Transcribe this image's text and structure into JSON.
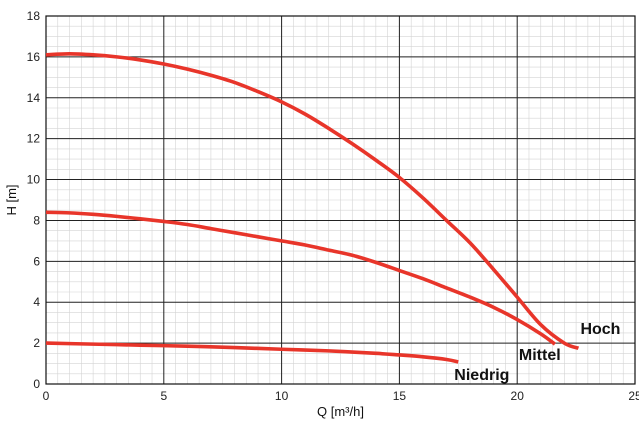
{
  "chart_data": {
    "type": "line",
    "xlabel": "Q [m³/h]",
    "ylabel": "H [m]",
    "xlim": [
      0,
      25
    ],
    "ylim": [
      0,
      18
    ],
    "xticks": [
      0,
      5,
      10,
      15,
      20,
      25
    ],
    "yticks": [
      0,
      2,
      4,
      6,
      8,
      10,
      12,
      14,
      16,
      18
    ],
    "grid": true,
    "line_color": "#e8352a",
    "series": [
      {
        "name": "Hoch",
        "x": [
          0,
          1,
          2,
          3,
          4,
          5,
          6,
          7,
          8,
          9,
          10,
          11,
          12,
          13,
          14,
          15,
          16,
          17,
          18,
          19,
          20,
          21,
          22,
          22.6
        ],
        "y": [
          16.1,
          16.15,
          16.1,
          16.0,
          15.85,
          15.65,
          15.4,
          15.1,
          14.75,
          14.3,
          13.8,
          13.2,
          12.5,
          11.75,
          10.95,
          10.1,
          9.1,
          8.0,
          6.9,
          5.6,
          4.25,
          2.9,
          2.0,
          1.75
        ]
      },
      {
        "name": "Mittel",
        "x": [
          0,
          1,
          2,
          3,
          4,
          5,
          6,
          7,
          8,
          9,
          10,
          11,
          12,
          13,
          14,
          15,
          16,
          17,
          18,
          19,
          20,
          21,
          21.6
        ],
        "y": [
          8.4,
          8.37,
          8.3,
          8.2,
          8.08,
          7.95,
          7.8,
          7.6,
          7.4,
          7.2,
          7.0,
          6.8,
          6.55,
          6.3,
          5.95,
          5.55,
          5.15,
          4.7,
          4.25,
          3.75,
          3.15,
          2.45,
          1.95
        ]
      },
      {
        "name": "Niedrig",
        "x": [
          0,
          2,
          4,
          6,
          8,
          10,
          12,
          14,
          15,
          16,
          17,
          17.5
        ],
        "y": [
          2.0,
          1.95,
          1.9,
          1.85,
          1.78,
          1.7,
          1.62,
          1.5,
          1.42,
          1.33,
          1.2,
          1.08
        ]
      }
    ]
  }
}
